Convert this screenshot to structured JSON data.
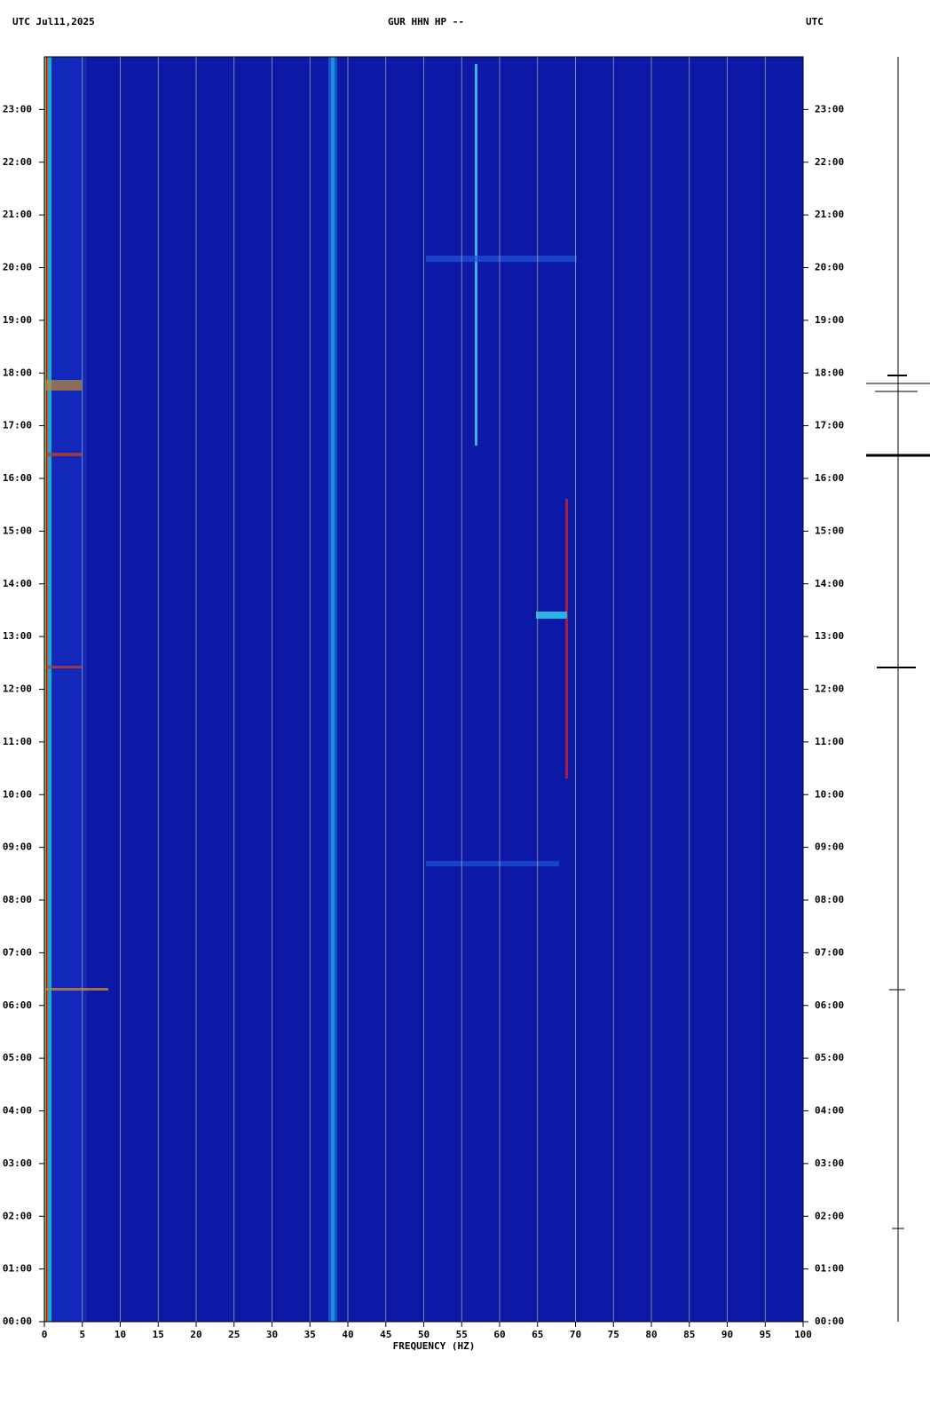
{
  "chart_data": {
    "type": "spectrogram",
    "title": "GUR HHN HP --",
    "date_label": "UTC  Jul11,2025",
    "right_label": "UTC",
    "xlabel": "FREQUENCY (HZ)",
    "xlim": [
      0,
      100
    ],
    "xticks": [
      0,
      5,
      10,
      15,
      20,
      25,
      30,
      35,
      40,
      45,
      50,
      55,
      60,
      65,
      70,
      75,
      80,
      85,
      90,
      95,
      100
    ],
    "ylim": [
      0,
      24
    ],
    "yticks": [
      {
        "value": 0,
        "label": "00:00"
      },
      {
        "value": 1,
        "label": "01:00"
      },
      {
        "value": 2,
        "label": "02:00"
      },
      {
        "value": 3,
        "label": "03:00"
      },
      {
        "value": 4,
        "label": "04:00"
      },
      {
        "value": 5,
        "label": "05:00"
      },
      {
        "value": 6,
        "label": "06:00"
      },
      {
        "value": 7,
        "label": "07:00"
      },
      {
        "value": 8,
        "label": "08:00"
      },
      {
        "value": 9,
        "label": "09:00"
      },
      {
        "value": 10,
        "label": "10:00"
      },
      {
        "value": 11,
        "label": "11:00"
      },
      {
        "value": 12,
        "label": "12:00"
      },
      {
        "value": 13,
        "label": "13:00"
      },
      {
        "value": 14,
        "label": "14:00"
      },
      {
        "value": 15,
        "label": "15:00"
      },
      {
        "value": 16,
        "label": "16:00"
      },
      {
        "value": 17,
        "label": "17:00"
      },
      {
        "value": 18,
        "label": "18:00"
      },
      {
        "value": 19,
        "label": "19:00"
      },
      {
        "value": 20,
        "label": "20:00"
      },
      {
        "value": 21,
        "label": "21:00"
      },
      {
        "value": 22,
        "label": "22:00"
      },
      {
        "value": 23,
        "label": "23:00"
      }
    ],
    "grid": true,
    "background_color": "#0c18a6",
    "grid_color": "#a0a0a0"
  }
}
